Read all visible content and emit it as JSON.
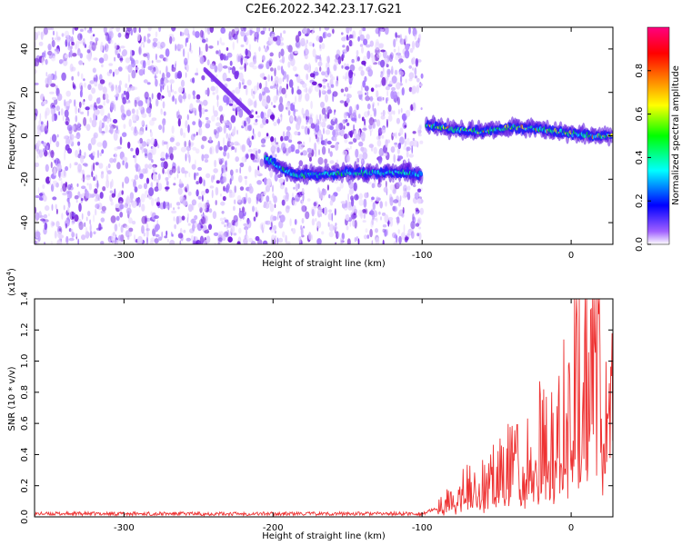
{
  "figure": {
    "title": "C2E6.2022.342.23.17.G21"
  },
  "chart_data": [
    {
      "type": "heatmap",
      "xlabel": "Height of straight line (km)",
      "ylabel": "Frequency (Hz)",
      "xlim": [
        -360,
        28
      ],
      "ylim": [
        -50,
        50
      ],
      "x_ticks": [
        -300,
        -200,
        -100,
        0
      ],
      "y_ticks": [
        -40,
        -20,
        0,
        20,
        40
      ],
      "colorbar": {
        "label": "Normalized spectral amplitude",
        "range": [
          0,
          1
        ],
        "ticks": [
          0.0,
          0.2,
          0.4,
          0.6,
          0.8
        ],
        "colormap": [
          "#ffffff",
          "#8000ff",
          "#0000ff",
          "#00ffff",
          "#00ff00",
          "#ffff00",
          "#ff8000",
          "#ff0000",
          "#ff0080"
        ]
      },
      "ridges": [
        {
          "x": [
            -205,
            -195,
            -185,
            -170,
            -150,
            -130,
            -115,
            -100
          ],
          "y": [
            -10,
            -15,
            -18,
            -18,
            -17,
            -17,
            -17,
            -18
          ],
          "level": 0.4
        },
        {
          "x": [
            -97,
            -80,
            -60,
            -40,
            -20,
            0,
            15,
            28
          ],
          "y": [
            5,
            3,
            2,
            4,
            3,
            1,
            0,
            0
          ],
          "level": 0.6
        }
      ],
      "noise_region": {
        "x": [
          -360,
          -100
        ],
        "level": 0.15
      }
    },
    {
      "type": "line",
      "xlabel": "Height of straight line (km)",
      "ylabel": "SNR (10 * v/v)",
      "y_multiplier_label": "(x10",
      "y_multiplier_exp": "4",
      "y_multiplier_close": ")",
      "xlim": [
        -360,
        28
      ],
      "ylim": [
        0,
        1.4
      ],
      "x_ticks": [
        -300,
        -200,
        -100,
        0
      ],
      "y_ticks": [
        0.0,
        0.2,
        0.4,
        0.6,
        0.8,
        1.0,
        1.2,
        1.4
      ],
      "line_color": "#ee3333",
      "series": [
        {
          "x": [
            -360,
            -300,
            -200,
            -100,
            -90,
            -80,
            -70,
            -60,
            -50,
            -40,
            -30,
            -20,
            -10,
            0,
            5,
            10,
            15,
            20,
            28
          ],
          "y": [
            0.02,
            0.02,
            0.02,
            0.02,
            0.05,
            0.12,
            0.18,
            0.22,
            0.28,
            0.34,
            0.4,
            0.48,
            0.55,
            0.68,
            0.9,
            0.88,
            0.92,
            0.95,
            1.03
          ]
        }
      ]
    }
  ]
}
